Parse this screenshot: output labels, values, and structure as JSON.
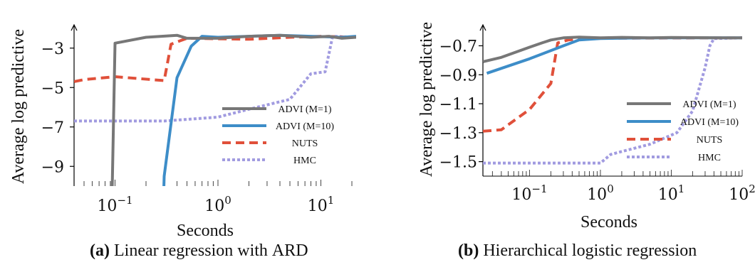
{
  "colors": {
    "advi1": "#777777",
    "advi10": "#3d8dc8",
    "nuts": "#e0503a",
    "hmc": "#a19be0"
  },
  "chart_data": [
    {
      "type": "line",
      "caption_label": "(a)",
      "caption_text": "Linear regression with",
      "caption_sc": "ARD",
      "xlabel": "Seconds",
      "ylabel": "Average log predictive",
      "xscale": "log",
      "xlim": [
        0.04,
        22
      ],
      "ylim": [
        -10,
        -2
      ],
      "xticks": [
        {
          "v": 0.1,
          "b": "10",
          "e": "−1"
        },
        {
          "v": 1,
          "b": "10",
          "e": "0"
        },
        {
          "v": 10,
          "b": "10",
          "e": "1"
        }
      ],
      "yticks": [
        {
          "v": -3,
          "l": "−3"
        },
        {
          "v": -5,
          "l": "−5"
        },
        {
          "v": -7,
          "l": "−7"
        },
        {
          "v": -9,
          "l": "−9"
        }
      ],
      "legend_position": "right",
      "series": [
        {
          "name": "ADVI (M=1)",
          "key": "advi1",
          "dash": "solid",
          "points": [
            [
              0.09,
              -15
            ],
            [
              0.1,
              -2.75
            ],
            [
              0.2,
              -2.45
            ],
            [
              0.4,
              -2.35
            ],
            [
              0.5,
              -2.5
            ],
            [
              1,
              -2.5
            ],
            [
              2,
              -2.4
            ],
            [
              4,
              -2.35
            ],
            [
              8,
              -2.45
            ],
            [
              12,
              -2.4
            ],
            [
              16,
              -2.5
            ],
            [
              22,
              -2.45
            ]
          ]
        },
        {
          "name": "ADVI (M=10)",
          "key": "advi10",
          "dash": "solid",
          "points": [
            [
              0.28,
              -15
            ],
            [
              0.3,
              -9.5
            ],
            [
              0.4,
              -4.5
            ],
            [
              0.55,
              -2.9
            ],
            [
              0.7,
              -2.4
            ],
            [
              1,
              -2.45
            ],
            [
              2,
              -2.4
            ],
            [
              4,
              -2.35
            ],
            [
              8,
              -2.4
            ],
            [
              16,
              -2.45
            ],
            [
              22,
              -2.4
            ]
          ]
        },
        {
          "name": "NUTS",
          "key": "nuts",
          "dash": "dashed",
          "points": [
            [
              0.04,
              -4.7
            ],
            [
              0.05,
              -4.6
            ],
            [
              0.1,
              -4.45
            ],
            [
              0.3,
              -4.65
            ],
            [
              0.35,
              -2.8
            ],
            [
              0.5,
              -2.5
            ],
            [
              2,
              -2.55
            ],
            [
              5,
              -2.45
            ],
            [
              10,
              -2.4
            ],
            [
              22,
              -2.45
            ]
          ]
        },
        {
          "name": "HMC",
          "key": "hmc",
          "dash": "dotted",
          "points": [
            [
              0.04,
              -6.7
            ],
            [
              0.3,
              -6.7
            ],
            [
              1,
              -6.5
            ],
            [
              2,
              -6.1
            ],
            [
              5,
              -5.6
            ],
            [
              8,
              -4.3
            ],
            [
              11,
              -4.2
            ],
            [
              13,
              -2.4
            ],
            [
              22,
              -2.45
            ]
          ]
        }
      ]
    },
    {
      "type": "line",
      "caption_label": "(b)",
      "caption_text": "Hierarchical logistic regression",
      "caption_sc": "",
      "xlabel": "Seconds",
      "ylabel": "Average log predictive",
      "xscale": "log",
      "xlim": [
        0.022,
        100
      ],
      "ylim": [
        -1.6,
        -0.58
      ],
      "xticks": [
        {
          "v": 0.1,
          "b": "10",
          "e": "−1"
        },
        {
          "v": 1,
          "b": "10",
          "e": "0"
        },
        {
          "v": 10,
          "b": "10",
          "e": "1"
        },
        {
          "v": 100,
          "b": "10",
          "e": "2"
        }
      ],
      "yticks": [
        {
          "v": -0.7,
          "l": "−0.7"
        },
        {
          "v": -0.9,
          "l": "−0.9"
        },
        {
          "v": -1.1,
          "l": "−1.1"
        },
        {
          "v": -1.3,
          "l": "−1.3"
        },
        {
          "v": -1.5,
          "l": "−1.5"
        }
      ],
      "legend_position": "right",
      "series": [
        {
          "name": "ADVI (M=1)",
          "key": "advi1",
          "dash": "solid",
          "points": [
            [
              0.022,
              -0.81
            ],
            [
              0.04,
              -0.78
            ],
            [
              0.1,
              -0.71
            ],
            [
              0.15,
              -0.68
            ],
            [
              0.2,
              -0.66
            ],
            [
              0.3,
              -0.645
            ],
            [
              0.5,
              -0.64
            ],
            [
              1,
              -0.645
            ],
            [
              2,
              -0.642
            ],
            [
              5,
              -0.645
            ],
            [
              10,
              -0.643
            ],
            [
              50,
              -0.645
            ],
            [
              100,
              -0.645
            ]
          ]
        },
        {
          "name": "ADVI (M=10)",
          "key": "advi10",
          "dash": "solid",
          "points": [
            [
              0.025,
              -0.89
            ],
            [
              0.1,
              -0.79
            ],
            [
              0.3,
              -0.7
            ],
            [
              0.5,
              -0.66
            ],
            [
              1,
              -0.65
            ],
            [
              3,
              -0.646
            ],
            [
              10,
              -0.645
            ],
            [
              100,
              -0.645
            ]
          ]
        },
        {
          "name": "NUTS",
          "key": "nuts",
          "dash": "dashed",
          "points": [
            [
              0.022,
              -1.29
            ],
            [
              0.04,
              -1.28
            ],
            [
              0.1,
              -1.14
            ],
            [
              0.2,
              -0.96
            ],
            [
              0.25,
              -0.68
            ],
            [
              0.35,
              -0.66
            ],
            [
              0.5,
              -0.652
            ],
            [
              1,
              -0.648
            ],
            [
              10,
              -0.646
            ],
            [
              100,
              -0.645
            ]
          ]
        },
        {
          "name": "HMC",
          "key": "hmc",
          "dash": "dotted",
          "points": [
            [
              0.022,
              -1.51
            ],
            [
              0.5,
              -1.51
            ],
            [
              1,
              -1.51
            ],
            [
              1.4,
              -1.45
            ],
            [
              5,
              -1.38
            ],
            [
              12,
              -1.3
            ],
            [
              20,
              -1.15
            ],
            [
              30,
              -0.85
            ],
            [
              35,
              -0.7
            ],
            [
              40,
              -0.65
            ],
            [
              100,
              -0.645
            ]
          ]
        }
      ]
    }
  ]
}
